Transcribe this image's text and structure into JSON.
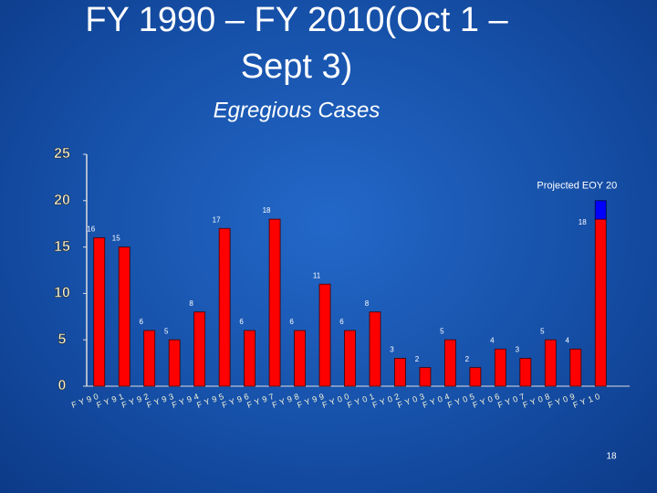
{
  "slide": {
    "title_lines": [
      "FY 1990 – FY 2010(Oct 1 –",
      "Sept 3)"
    ],
    "page_number": "18"
  },
  "chart_data": {
    "type": "bar",
    "title": "Egregious Cases",
    "categories": [
      "FY90",
      "FY91",
      "FY92",
      "FY93",
      "FY94",
      "FY95",
      "FY96",
      "FY97",
      "FY98",
      "FY99",
      "FY00",
      "FY01",
      "FY02",
      "FY03",
      "FY04",
      "FY05",
      "FY06",
      "FY07",
      "FY08",
      "FY09",
      "FY10"
    ],
    "values": [
      16,
      15,
      6,
      5,
      8,
      17,
      6,
      18,
      6,
      11,
      6,
      8,
      3,
      2,
      5,
      2,
      4,
      3,
      5,
      4,
      18
    ],
    "color": "#ff0000",
    "projected_values": [
      null,
      null,
      null,
      null,
      null,
      null,
      null,
      null,
      null,
      null,
      null,
      null,
      null,
      null,
      null,
      null,
      null,
      null,
      null,
      null,
      2
    ],
    "projected_color": "#0000ff",
    "annotation": "Projected EOY 20",
    "ylim": [
      0,
      25
    ],
    "yticks": [
      0,
      5,
      10,
      15,
      20,
      25
    ],
    "grid": false
  }
}
